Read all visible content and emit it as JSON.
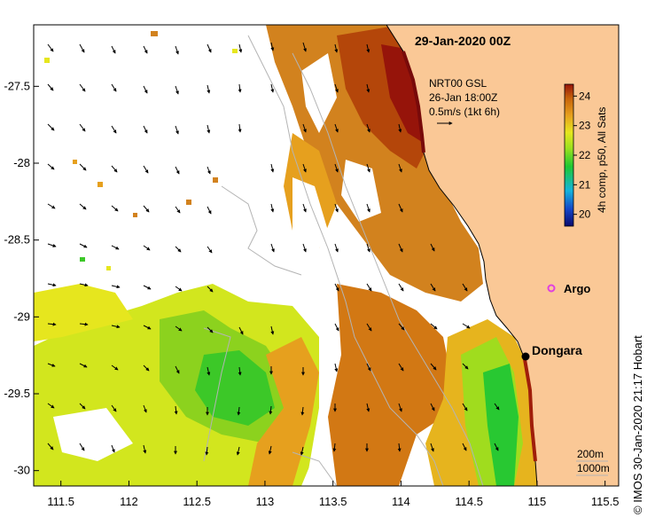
{
  "title": "29-Jan-2020 00Z",
  "credit": "© IMOS 30-Jan-2020 21:17 Hobart",
  "current_legend": {
    "line1": "NRT00 GSL",
    "line2": "26-Jan 18:00Z",
    "line3": "0.5m/s (1kt 6h)"
  },
  "colorbar": {
    "label": "4h comp, p50, All Sats",
    "ticks": [
      "24",
      "23",
      "22",
      "21",
      "20"
    ],
    "min": 19.6,
    "max": 24.4,
    "colors": [
      "#0a0a6e",
      "#1446c8",
      "#14b4dc",
      "#1ec832",
      "#9ce11e",
      "#e6e61e",
      "#e6a01e",
      "#c8640a",
      "#96140a"
    ]
  },
  "map": {
    "x_ticks": [
      "111.5",
      "112",
      "112.5",
      "113",
      "113.5",
      "114",
      "114.5",
      "115",
      "115.5"
    ],
    "y_ticks": [
      "-27.5",
      "-28",
      "-28.5",
      "-29",
      "-29.5",
      "-30"
    ],
    "lon_range": [
      111.3,
      115.6
    ],
    "lat_range": [
      -30.1,
      -27.1
    ],
    "land_color": "#fac896",
    "places": [
      {
        "name": "Argo",
        "lon": 115.1,
        "lat": -28.85,
        "marker": "argo-float-icon",
        "color": "#e040e0"
      },
      {
        "name": "Dongara",
        "lon": 114.93,
        "lat": -29.25,
        "marker": "town-dot-icon",
        "color": "#000000"
      }
    ],
    "bathymetry_legend": [
      "200m",
      "1000m"
    ]
  }
}
